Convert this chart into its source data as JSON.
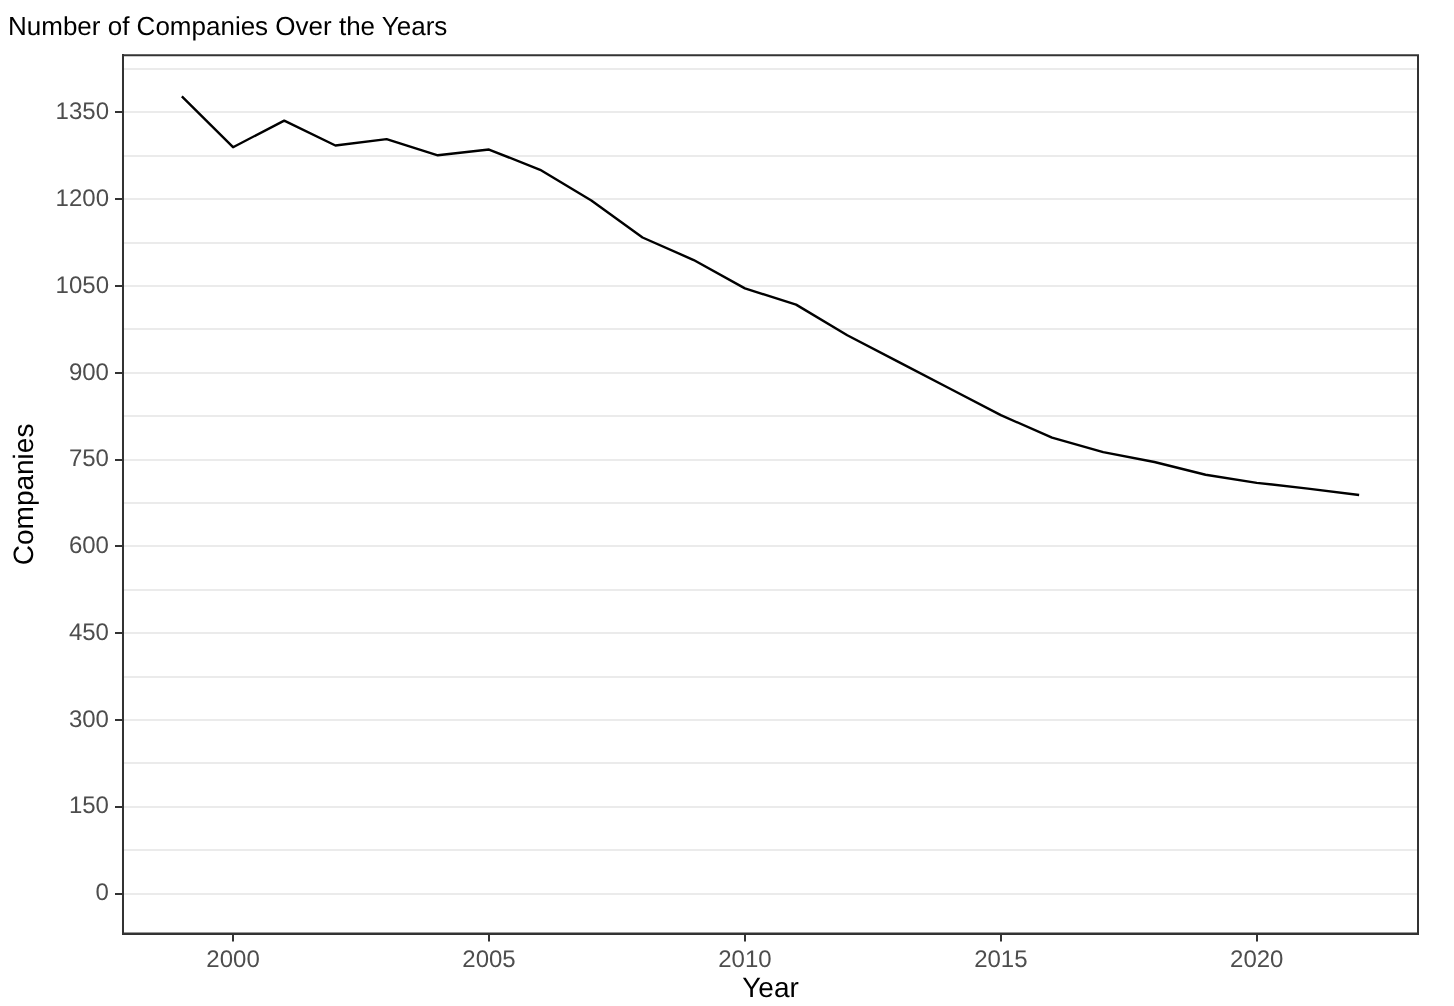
{
  "chart_data": {
    "type": "line",
    "title": "Number of Companies Over the Years",
    "xlabel": "Year",
    "ylabel": "Companies",
    "x": [
      1999,
      2000,
      2001,
      2002,
      2003,
      2004,
      2005,
      2006,
      2007,
      2008,
      2009,
      2010,
      2011,
      2012,
      2013,
      2014,
      2015,
      2016,
      2017,
      2018,
      2019,
      2020,
      2021,
      2022
    ],
    "series": [
      {
        "color": "#000000",
        "values": [
          1378,
          1290,
          1336,
          1293,
          1304,
          1276,
          1286,
          1251,
          1198,
          1134,
          1095,
          1046,
          1018,
          965,
          919,
          873,
          827,
          788,
          763,
          746,
          724,
          710,
          700,
          689
        ]
      }
    ],
    "xlim": [
      1997.85,
      2023.15
    ],
    "xticks": [
      2000,
      2005,
      2010,
      2015,
      2020
    ],
    "ylim": [
      -69,
      1449
    ],
    "yticks": [
      0,
      {
        "value": 75,
        "label": null
      },
      150,
      {
        "value": 225,
        "label": null
      },
      300,
      {
        "value": 375,
        "label": null
      },
      450,
      {
        "value": 525,
        "label": null
      },
      600,
      {
        "value": 675,
        "label": null
      },
      750,
      {
        "value": 825,
        "label": null
      },
      900,
      {
        "value": 975,
        "label": null
      },
      1050,
      {
        "value": 1125,
        "label": null
      },
      1200,
      {
        "value": 1275,
        "label": null
      },
      1350,
      {
        "value": 1425,
        "label": null
      }
    ],
    "grid": "y",
    "legend": false,
    "marker": "none",
    "line_style": "solid"
  }
}
